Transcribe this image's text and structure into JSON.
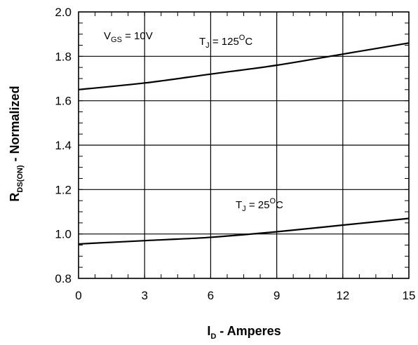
{
  "chart_data": {
    "type": "line",
    "xlabel": {
      "main": "I",
      "sub": "D",
      "rest": " - Amperes"
    },
    "ylabel": {
      "main": "R",
      "sub": "DS(ON)",
      "rest": " - Normalized"
    },
    "xlim": [
      0,
      15
    ],
    "ylim": [
      0.8,
      2.0
    ],
    "x_ticks": [
      0,
      3,
      6,
      9,
      12,
      15
    ],
    "y_ticks": [
      0.8,
      1.0,
      1.2,
      1.4,
      1.6,
      1.8,
      2.0
    ],
    "x_tick_labels": [
      "0",
      "3",
      "6",
      "9",
      "12",
      "15"
    ],
    "y_tick_labels": [
      "0.8",
      "1.0",
      "1.2",
      "1.4",
      "1.6",
      "1.8",
      "2.0"
    ],
    "grid": true,
    "series": [
      {
        "name": "T_J = 125°C",
        "x": [
          0,
          3,
          6,
          9,
          12,
          15
        ],
        "y": [
          1.65,
          1.68,
          1.72,
          1.76,
          1.81,
          1.86
        ]
      },
      {
        "name": "T_J = 25°C",
        "x": [
          0,
          3,
          6,
          9,
          12,
          15
        ],
        "y": [
          0.955,
          0.97,
          0.985,
          1.01,
          1.04,
          1.07
        ]
      }
    ],
    "annotations": [
      {
        "id": "vgs",
        "main": "V",
        "sub": "GS",
        "rest": " = 10V"
      },
      {
        "id": "tj125",
        "main": "T",
        "sub": "J",
        "rest": " = 125",
        "sup": "O",
        "tail": "C"
      },
      {
        "id": "tj25",
        "main": "T",
        "sub": "J",
        "rest": " = 25",
        "sup": "O",
        "tail": "C"
      }
    ],
    "line_color": "#000000"
  }
}
